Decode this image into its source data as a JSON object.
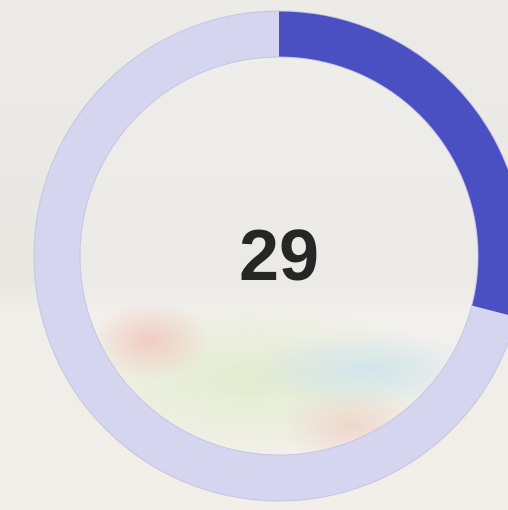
{
  "progress": {
    "value": 29,
    "range": [
      0,
      100
    ]
  }
}
